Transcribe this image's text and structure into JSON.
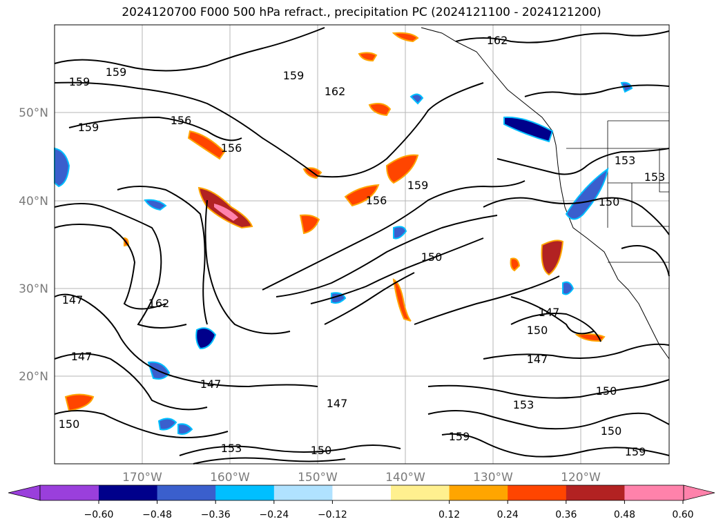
{
  "title": "2024120700 F000 500 hPa refract., precipitation PC (2024121100 - 2024121200)",
  "map": {
    "lat_labels": [
      "50°N",
      "40°N",
      "30°N",
      "20°N"
    ],
    "lon_labels": [
      "170°W",
      "160°W",
      "150°W",
      "140°W",
      "130°W",
      "120°W"
    ],
    "contour_labels": [
      "162",
      "159",
      "159",
      "159",
      "162",
      "156",
      "156",
      "159",
      "156",
      "159",
      "150",
      "153",
      "153",
      "150",
      "147",
      "147",
      "150",
      "147",
      "162",
      "147",
      "147",
      "147",
      "150",
      "153",
      "159",
      "153",
      "150",
      "150",
      "150",
      "159"
    ]
  },
  "colorbar": {
    "colors": [
      "#9a3fdc",
      "#00008b",
      "#3a5fcd",
      "#00bfff",
      "#b0e2ff",
      "#ffffff",
      "#fff08f",
      "#ffa500",
      "#ff4500",
      "#b22222",
      "#ff82ab"
    ],
    "tick_labels": [
      "−0.60",
      "−0.48",
      "−0.36",
      "−0.24",
      "−0.12",
      "0.12",
      "0.24",
      "0.36",
      "0.48",
      "0.60"
    ]
  }
}
